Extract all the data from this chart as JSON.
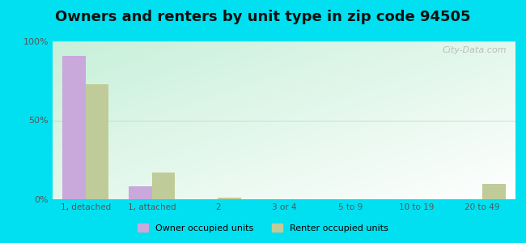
{
  "title": "Owners and renters by unit type in zip code 94505",
  "categories": [
    "1, detached",
    "1, attached",
    "2",
    "3 or 4",
    "5 to 9",
    "10 to 19",
    "20 to 49"
  ],
  "owner_values": [
    91,
    8,
    0,
    0,
    0,
    0,
    0
  ],
  "renter_values": [
    73,
    17,
    1,
    0,
    0,
    0,
    10
  ],
  "owner_color": "#c9a8dc",
  "renter_color": "#bfcc99",
  "ylim": [
    0,
    100
  ],
  "yticks": [
    0,
    50,
    100
  ],
  "ytick_labels": [
    "0%",
    "50%",
    "100%"
  ],
  "background_outer": "#00e0f0",
  "watermark": "City-Data.com",
  "title_fontsize": 13,
  "legend_labels": [
    "Owner occupied units",
    "Renter occupied units"
  ]
}
